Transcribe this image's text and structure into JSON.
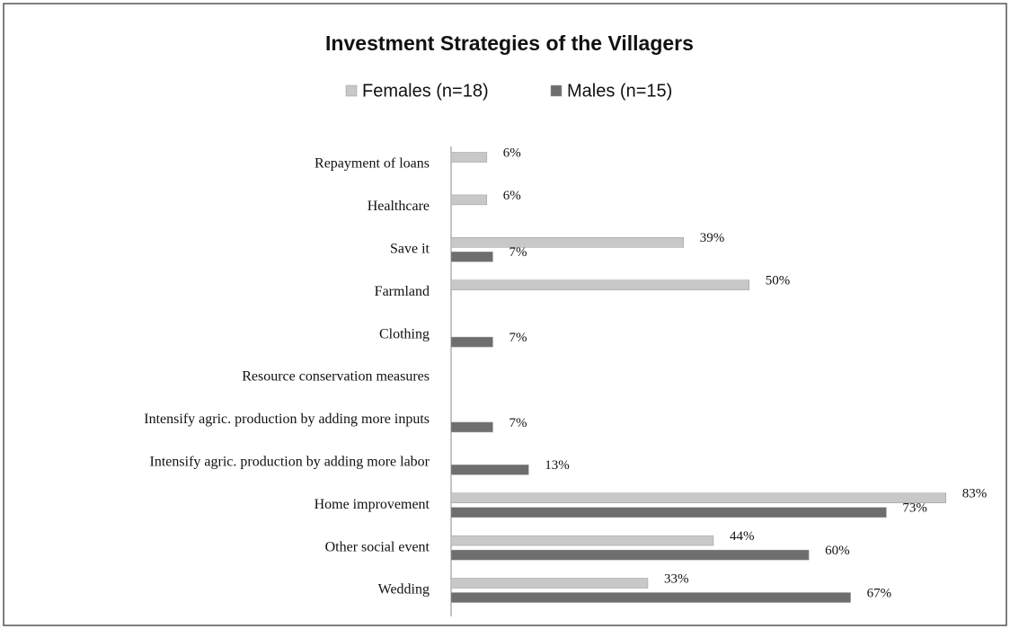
{
  "chart_data": {
    "type": "bar",
    "orientation": "horizontal",
    "title": "Investment Strategies of the Villagers",
    "categories": [
      "Repayment of loans",
      "Healthcare",
      "Save it",
      "Farmland",
      "Clothing",
      "Resource conservation measures",
      "Intensify agric. production by adding more inputs",
      "Intensify agric. production by adding more labor",
      "Home improvement",
      "Other social event",
      "Wedding"
    ],
    "series": [
      {
        "name": "Females (n=18)",
        "color": "#c8c8c8",
        "values": [
          6,
          6,
          39,
          50,
          null,
          null,
          null,
          null,
          83,
          44,
          33
        ],
        "value_labels": [
          "6%",
          "6%",
          "39%",
          "50%",
          null,
          null,
          null,
          null,
          "83%",
          "44%",
          "33%"
        ]
      },
      {
        "name": "Males (n=15)",
        "color": "#6e6e6e",
        "values": [
          null,
          null,
          7,
          null,
          7,
          null,
          7,
          13,
          73,
          60,
          67
        ],
        "value_labels": [
          null,
          null,
          "7%",
          null,
          "7%",
          null,
          "7%",
          "13%",
          "73%",
          "60%",
          "67%"
        ]
      }
    ],
    "xlim": [
      0,
      85
    ],
    "legend": "top"
  }
}
